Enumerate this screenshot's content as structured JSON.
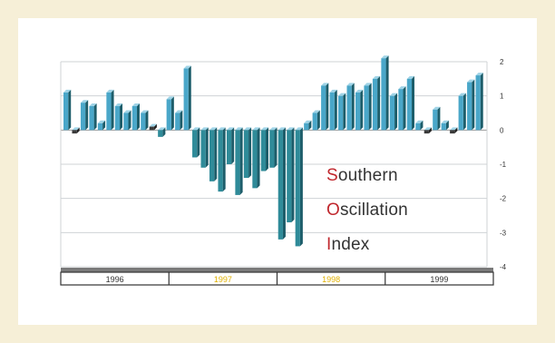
{
  "chart_data": {
    "type": "bar",
    "title_lines": [
      {
        "initial": "S",
        "rest": "outhern"
      },
      {
        "initial": "O",
        "rest": "scillation"
      },
      {
        "initial": "I",
        "rest": "ndex"
      }
    ],
    "y_ticks": [
      "2",
      "1",
      "0",
      "-1",
      "-2",
      "-3",
      "-4"
    ],
    "ylim": [
      -4,
      2
    ],
    "grid": true,
    "years": [
      {
        "label": "1996",
        "color": "#333333"
      },
      {
        "label": "1997",
        "color": "#e0b000"
      },
      {
        "label": "1998",
        "color": "#e0b000"
      },
      {
        "label": "1999",
        "color": "#333333"
      }
    ],
    "values": [
      1.1,
      -0.1,
      0.8,
      0.7,
      0.2,
      1.1,
      0.7,
      0.5,
      0.7,
      0.5,
      0.1,
      -0.2,
      0.9,
      0.5,
      1.8,
      -0.8,
      -1.1,
      -1.5,
      -1.8,
      -1.0,
      -1.9,
      -1.4,
      -1.7,
      -1.2,
      -1.1,
      -3.2,
      -2.7,
      -3.4,
      0.2,
      0.5,
      1.3,
      1.1,
      1.0,
      1.3,
      1.1,
      1.3,
      1.5,
      2.1,
      1.0,
      1.2,
      1.5,
      0.2,
      -0.1,
      0.6,
      0.2,
      -0.1,
      1.0,
      1.4,
      1.6
    ],
    "colors": {
      "positive": "#4aa7c9",
      "negative": "#2f8b99",
      "side_dark": "#1d5d6a",
      "neutral": "#222222",
      "grid": "#cfd3d6",
      "frame": "#6f6f6f"
    }
  }
}
